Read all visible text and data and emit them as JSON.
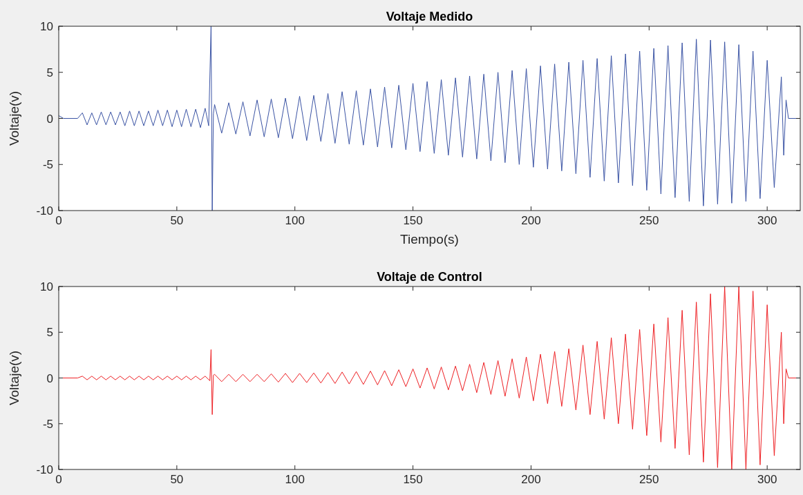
{
  "chart_data": [
    {
      "type": "line",
      "title": "Voltaje Medido",
      "xlabel": "Tiempo(s)",
      "ylabel": "Voltaje(v)",
      "xlim": [
        0,
        314
      ],
      "ylim": [
        -10,
        10
      ],
      "xticks": [
        0,
        50,
        100,
        150,
        200,
        250,
        300
      ],
      "yticks": [
        -10,
        -5,
        0,
        5,
        10
      ],
      "grid": false,
      "series": [
        {
          "color": "#3a53a4",
          "x": [
            0,
            2,
            8,
            10,
            12,
            14,
            16,
            18,
            20,
            22,
            24,
            26,
            28,
            30,
            32,
            34,
            36,
            38,
            40,
            42,
            44,
            46,
            48,
            50,
            52,
            54,
            56,
            58,
            60,
            62,
            63.5,
            64.5,
            65,
            65.5,
            66,
            69,
            72,
            75,
            78,
            81,
            84,
            87,
            90,
            93,
            96,
            99,
            102,
            105,
            108,
            111,
            114,
            117,
            120,
            123,
            126,
            129,
            132,
            135,
            138,
            141,
            144,
            147,
            150,
            153,
            156,
            159,
            162,
            165,
            168,
            171,
            174,
            177,
            180,
            183,
            186,
            189,
            192,
            195,
            198,
            201,
            204,
            207,
            210,
            213,
            216,
            219,
            222,
            225,
            228,
            231,
            234,
            237,
            240,
            243,
            246,
            249,
            252,
            255,
            258,
            261,
            264,
            267,
            270,
            273,
            276,
            279,
            282,
            285,
            288,
            291,
            294,
            297,
            300,
            303,
            306,
            307,
            308,
            309,
            314
          ],
          "values": [
            0.3,
            0,
            0,
            0.6,
            -0.7,
            0.6,
            -0.7,
            0.7,
            -0.7,
            0.7,
            -0.7,
            0.7,
            -0.8,
            0.8,
            -0.8,
            0.8,
            -0.8,
            0.8,
            -0.8,
            0.9,
            -0.8,
            0.9,
            -0.9,
            0.9,
            -0.9,
            1.0,
            -0.9,
            1.0,
            -1.0,
            1.1,
            -0.8,
            10,
            -10,
            0.5,
            1.5,
            -1.6,
            1.7,
            -1.7,
            1.8,
            -1.9,
            2.0,
            -2.0,
            2.1,
            -2.1,
            2.2,
            -2.2,
            2.4,
            -2.4,
            2.5,
            -2.5,
            2.7,
            -2.7,
            2.9,
            -2.8,
            3.0,
            -2.9,
            3.2,
            -3.1,
            3.4,
            -3.2,
            3.6,
            -3.4,
            3.8,
            -3.6,
            4.0,
            -3.8,
            4.2,
            -4.0,
            4.4,
            -4.2,
            4.6,
            -4.4,
            4.8,
            -4.6,
            5.0,
            -4.8,
            5.2,
            -5.0,
            5.4,
            -5.3,
            5.7,
            -5.5,
            5.9,
            -5.7,
            6.1,
            -6.0,
            6.3,
            -6.4,
            6.5,
            -6.8,
            6.8,
            -7.0,
            7.0,
            -7.3,
            7.3,
            -7.8,
            7.6,
            -8.2,
            7.9,
            -8.6,
            8.2,
            -9.0,
            8.6,
            -9.5,
            8.5,
            -9.3,
            8.3,
            -9.2,
            8.0,
            -9.0,
            7.3,
            -8.7,
            6.3,
            -7.5,
            4.5,
            -4,
            2,
            0,
            0
          ]
        }
      ]
    },
    {
      "type": "line",
      "title": "Voltaje de Control",
      "ylabel": "Voltaje(v)",
      "xlim": [
        0,
        314
      ],
      "ylim": [
        -10,
        10
      ],
      "xticks": [
        0,
        50,
        100,
        150,
        200,
        250,
        300
      ],
      "yticks": [
        -10,
        -5,
        0,
        5,
        10
      ],
      "grid": false,
      "series": [
        {
          "color": "#ee2024",
          "x": [
            0,
            8,
            10,
            12,
            14,
            16,
            18,
            20,
            22,
            24,
            26,
            28,
            30,
            32,
            34,
            36,
            38,
            40,
            42,
            44,
            46,
            48,
            50,
            52,
            54,
            56,
            58,
            60,
            62,
            64,
            64.5,
            65,
            65.5,
            66,
            69,
            72,
            75,
            78,
            81,
            84,
            87,
            90,
            93,
            96,
            99,
            102,
            105,
            108,
            111,
            114,
            117,
            120,
            123,
            126,
            129,
            132,
            135,
            138,
            141,
            144,
            147,
            150,
            153,
            156,
            159,
            162,
            165,
            168,
            171,
            174,
            177,
            180,
            183,
            186,
            189,
            192,
            195,
            198,
            201,
            204,
            207,
            210,
            213,
            216,
            219,
            222,
            225,
            228,
            231,
            234,
            237,
            240,
            243,
            246,
            249,
            252,
            255,
            258,
            261,
            264,
            267,
            270,
            273,
            276,
            279,
            282,
            285,
            288,
            291,
            294,
            297,
            300,
            303,
            306,
            307,
            308,
            309,
            314
          ],
          "values": [
            0,
            0,
            0.2,
            -0.2,
            0.2,
            -0.2,
            0.2,
            -0.2,
            0.2,
            -0.2,
            0.2,
            -0.2,
            0.2,
            -0.2,
            0.2,
            -0.2,
            0.2,
            -0.2,
            0.2,
            -0.2,
            0.2,
            -0.2,
            0.2,
            -0.2,
            0.2,
            -0.2,
            0.2,
            -0.2,
            0.2,
            -0.3,
            3.1,
            -4.0,
            0.3,
            0.4,
            -0.4,
            0.4,
            -0.4,
            0.4,
            -0.4,
            0.4,
            -0.4,
            0.45,
            -0.45,
            0.5,
            -0.5,
            0.5,
            -0.5,
            0.55,
            -0.55,
            0.6,
            -0.6,
            0.65,
            -0.65,
            0.7,
            -0.7,
            0.75,
            -0.75,
            0.8,
            -0.85,
            0.9,
            -0.95,
            1.0,
            -1.1,
            1.1,
            -1.2,
            1.2,
            -1.3,
            1.3,
            -1.4,
            1.5,
            -1.6,
            1.7,
            -1.8,
            1.9,
            -2.0,
            2.1,
            -2.2,
            2.3,
            -2.5,
            2.6,
            -2.8,
            2.9,
            -3.1,
            3.2,
            -3.5,
            3.6,
            -4.0,
            4.0,
            -4.5,
            4.4,
            -5.0,
            4.8,
            -5.6,
            5.3,
            -6.3,
            5.9,
            -7.0,
            6.6,
            -7.7,
            7.4,
            -8.4,
            8.3,
            -9.2,
            9.2,
            -9.8,
            10,
            -10,
            10,
            -10,
            9.5,
            -9.5,
            8,
            -8.5,
            5,
            -5,
            1,
            0,
            0
          ]
        }
      ]
    }
  ]
}
